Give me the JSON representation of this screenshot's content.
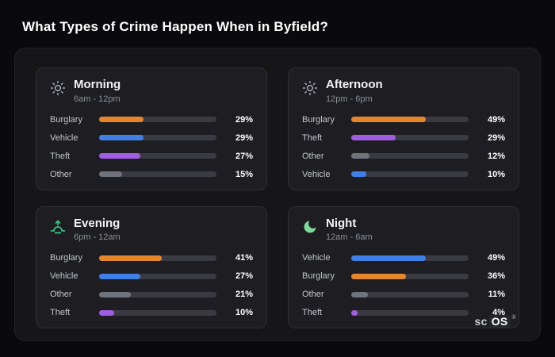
{
  "page": {
    "title": "What Types of Crime Happen When in Byfield?"
  },
  "brand": {
    "prefix": "sc",
    "suffix": "OS",
    "registered": "®"
  },
  "colors": {
    "burglary": "#e5862b",
    "vehicle": "#3f7fe8",
    "theft": "#a15ce4",
    "other": "#6e737c",
    "background": "#0a0a0c",
    "panel": "#161619",
    "card": "#1e1e22"
  },
  "chart_data": {
    "type": "bar",
    "title": "What Types of Crime Happen When in Byfield?",
    "unit": "%",
    "xlim": [
      0,
      100
    ],
    "bar_scale": 1.3,
    "legend_position": "none",
    "grid": false,
    "groups": [
      {
        "title": "Morning",
        "subtitle": "6am - 12pm",
        "icon": "sun-icon",
        "icon_color": "#9aa0a6",
        "rows": [
          {
            "label": "Burglary",
            "value": 29,
            "pct": "29%",
            "color": "#e5862b"
          },
          {
            "label": "Vehicle",
            "value": 29,
            "pct": "29%",
            "color": "#3f7fe8"
          },
          {
            "label": "Theft",
            "value": 27,
            "pct": "27%",
            "color": "#a15ce4"
          },
          {
            "label": "Other",
            "value": 15,
            "pct": "15%",
            "color": "#6e737c"
          }
        ]
      },
      {
        "title": "Afternoon",
        "subtitle": "12pm - 6pm",
        "icon": "sun-icon",
        "icon_color": "#9aa0a6",
        "rows": [
          {
            "label": "Burglary",
            "value": 49,
            "pct": "49%",
            "color": "#e5862b"
          },
          {
            "label": "Theft",
            "value": 29,
            "pct": "29%",
            "color": "#a15ce4"
          },
          {
            "label": "Other",
            "value": 12,
            "pct": "12%",
            "color": "#6e737c"
          },
          {
            "label": "Vehicle",
            "value": 10,
            "pct": "10%",
            "color": "#3f7fe8"
          }
        ]
      },
      {
        "title": "Evening",
        "subtitle": "6pm - 12am",
        "icon": "sunrise-icon",
        "icon_color": "#35c98a",
        "rows": [
          {
            "label": "Burglary",
            "value": 41,
            "pct": "41%",
            "color": "#e5862b"
          },
          {
            "label": "Vehicle",
            "value": 27,
            "pct": "27%",
            "color": "#3f7fe8"
          },
          {
            "label": "Other",
            "value": 21,
            "pct": "21%",
            "color": "#6e737c"
          },
          {
            "label": "Theft",
            "value": 10,
            "pct": "10%",
            "color": "#a15ce4"
          }
        ]
      },
      {
        "title": "Night",
        "subtitle": "12am - 6am",
        "icon": "moon-icon",
        "icon_color": "#7fd99a",
        "rows": [
          {
            "label": "Vehicle",
            "value": 49,
            "pct": "49%",
            "color": "#3f7fe8"
          },
          {
            "label": "Burglary",
            "value": 36,
            "pct": "36%",
            "color": "#e5862b"
          },
          {
            "label": "Other",
            "value": 11,
            "pct": "11%",
            "color": "#6e737c"
          },
          {
            "label": "Theft",
            "value": 4,
            "pct": "4%",
            "color": "#a15ce4"
          }
        ]
      }
    ]
  }
}
